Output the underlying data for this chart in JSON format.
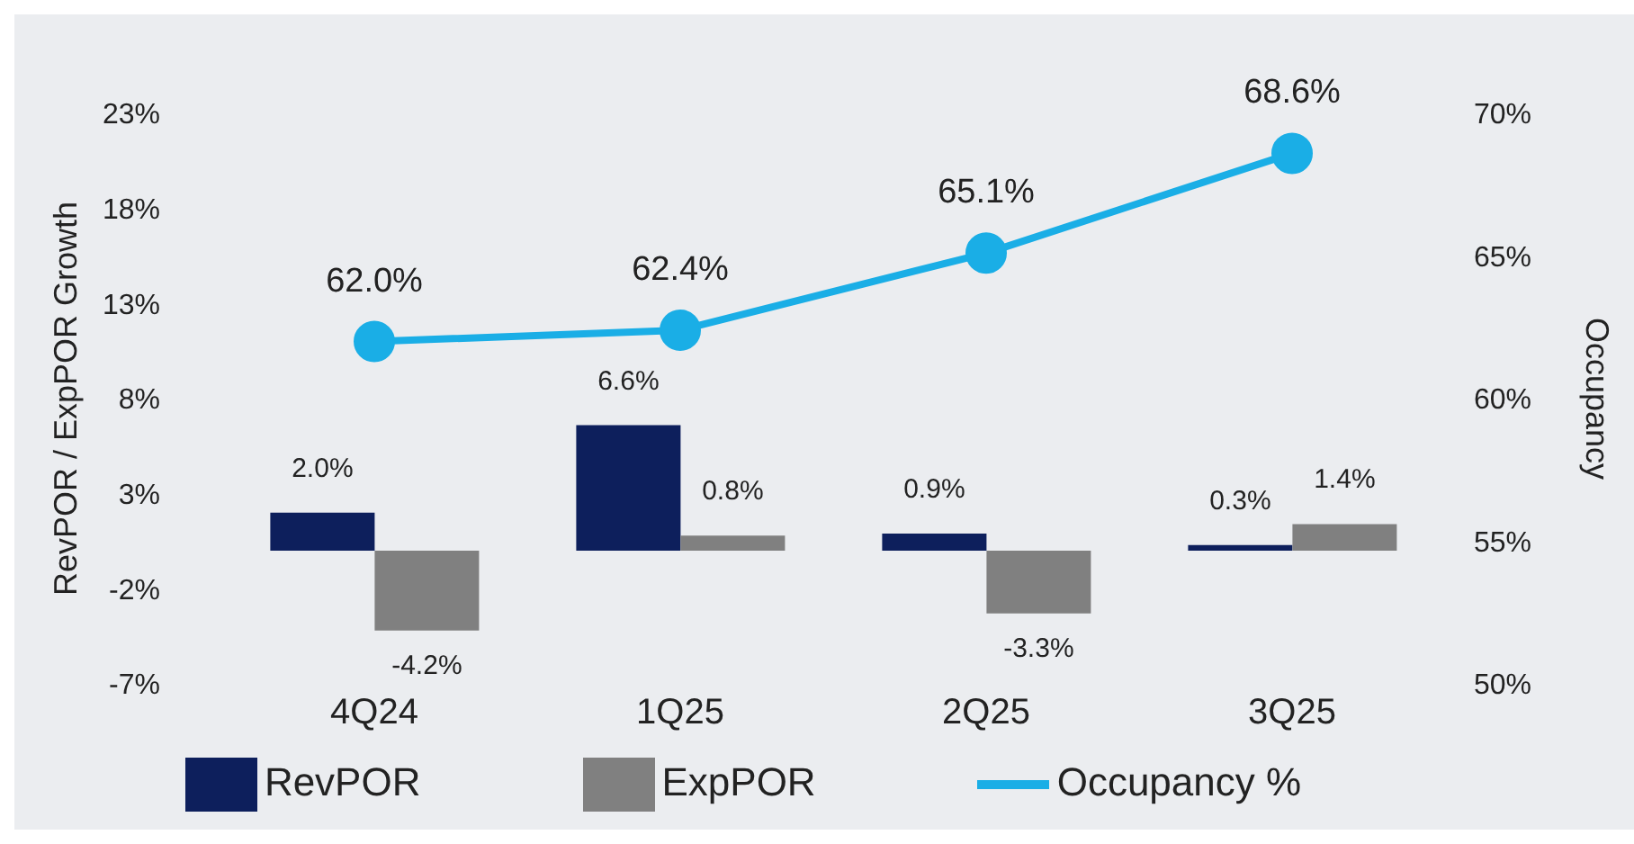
{
  "chart_data": {
    "type": "bar",
    "ylabel": "RevPOR / ExpPOR Growth",
    "y2label": "Occupancy",
    "categories": [
      "4Q24",
      "1Q25",
      "2Q25",
      "3Q25"
    ],
    "series": [
      {
        "name": "RevPOR",
        "color": "#0d1f5c",
        "values": [
          2.0,
          6.6,
          0.9,
          0.3
        ],
        "value_labels": [
          "2.0%",
          "6.6%",
          "0.9%",
          "0.3%"
        ]
      },
      {
        "name": "ExpPOR",
        "color": "#808080",
        "values": [
          -4.2,
          0.8,
          -3.3,
          1.4
        ],
        "value_labels": [
          "-4.2%",
          "0.8%",
          "-3.3%",
          "1.4%"
        ]
      },
      {
        "name": "Occupancy %",
        "type": "line",
        "axis": "y2",
        "color": "#1aaee6",
        "values": [
          62.0,
          62.4,
          65.1,
          68.6
        ],
        "value_labels": [
          "62.0%",
          "62.4%",
          "65.1%",
          "68.6%"
        ]
      }
    ],
    "ylim": [
      -7,
      23
    ],
    "yticks": [
      {
        "value": -7,
        "label": "-7%"
      },
      {
        "value": -2,
        "label": "-2%"
      },
      {
        "value": 3,
        "label": "3%"
      },
      {
        "value": 8,
        "label": "8%"
      },
      {
        "value": 13,
        "label": "13%"
      },
      {
        "value": 18,
        "label": "18%"
      },
      {
        "value": 23,
        "label": "23%"
      }
    ],
    "y2lim": [
      50,
      70
    ],
    "y2ticks": [
      {
        "value": 50,
        "label": "50%"
      },
      {
        "value": 55,
        "label": "55%"
      },
      {
        "value": 60,
        "label": "60%"
      },
      {
        "value": 65,
        "label": "65%"
      },
      {
        "value": 70,
        "label": "70%"
      }
    ],
    "grid": false,
    "legend": "bottom",
    "marker": "circle",
    "line_style": "solid"
  }
}
